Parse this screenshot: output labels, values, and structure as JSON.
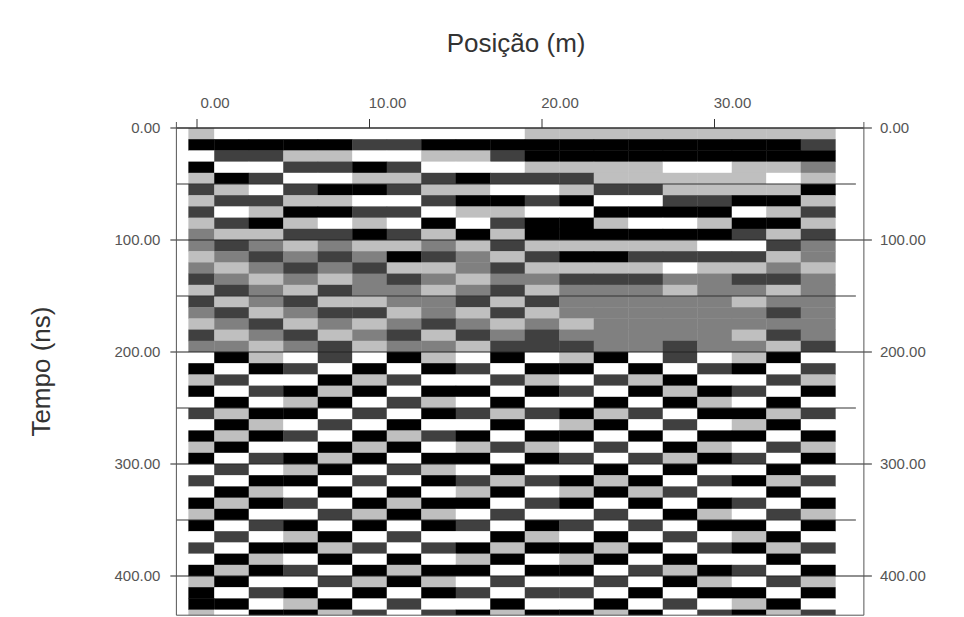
{
  "chart_data": {
    "type": "heatmap",
    "x_label": "Posição (m)",
    "y_label": "Tempo (ns)",
    "xlim": [
      -0.5,
      37.5
    ],
    "ylim": [
      0,
      435
    ],
    "xticks": [
      {
        "value": 0,
        "label": "0.00"
      },
      {
        "value": 10,
        "label": "10.00"
      },
      {
        "value": 20,
        "label": "20.00"
      },
      {
        "value": 30,
        "label": "30.00"
      }
    ],
    "yticks": [
      {
        "value": 0,
        "label": "0.00"
      },
      {
        "value": 100,
        "label": "100.00"
      },
      {
        "value": 200,
        "label": "200.00"
      },
      {
        "value": 300,
        "label": "300.00"
      },
      {
        "value": 400,
        "label": "400.00"
      }
    ],
    "y_minor_ticks": [
      50,
      150,
      250,
      350
    ],
    "grid": true,
    "cells": {
      "value_range": [
        -2,
        2
      ],
      "x": [
        0,
        2,
        4,
        6,
        8,
        10,
        12,
        14,
        16,
        18,
        20,
        22,
        24,
        26,
        28,
        30,
        32,
        34,
        36
      ],
      "y": [
        5,
        15,
        25,
        35,
        45,
        55,
        65,
        75,
        85,
        95,
        105,
        115,
        125,
        135,
        145,
        155,
        165,
        175,
        185,
        195,
        205,
        215,
        225,
        235,
        245,
        255,
        265,
        275,
        285,
        295,
        305,
        315,
        325,
        335,
        345,
        355,
        365,
        375,
        385,
        395,
        405,
        415,
        425,
        435
      ],
      "values": [
        [
          1,
          2,
          2,
          2,
          2,
          2,
          2,
          2,
          2,
          2,
          1,
          1,
          1,
          1,
          1,
          1,
          1,
          1,
          1
        ],
        [
          -2,
          -2,
          -2,
          -2,
          -2,
          -1,
          -1,
          -2,
          -2,
          -2,
          -2,
          -2,
          -2,
          -2,
          -2,
          -2,
          -2,
          -2,
          -1
        ],
        [
          2,
          -1,
          -1,
          1,
          1,
          2,
          2,
          1,
          1,
          -1,
          -2,
          -2,
          -2,
          -2,
          -2,
          -2,
          -2,
          -2,
          -2
        ],
        [
          -2,
          2,
          2,
          -1,
          -1,
          -2,
          -1,
          2,
          2,
          2,
          1,
          1,
          1,
          1,
          2,
          2,
          1,
          1,
          0
        ],
        [
          1,
          -2,
          -1,
          2,
          2,
          1,
          1,
          -1,
          -2,
          -1,
          -1,
          -1,
          1,
          1,
          1,
          1,
          1,
          2,
          1
        ],
        [
          -1,
          1,
          2,
          -1,
          -2,
          -2,
          -1,
          1,
          1,
          2,
          2,
          1,
          -1,
          -1,
          1,
          1,
          1,
          1,
          -2
        ],
        [
          1,
          -1,
          -1,
          1,
          1,
          2,
          2,
          -1,
          -2,
          -2,
          -1,
          -2,
          2,
          2,
          -1,
          -1,
          -2,
          -2,
          1
        ],
        [
          -1,
          2,
          1,
          -2,
          -2,
          -1,
          -1,
          2,
          1,
          1,
          2,
          2,
          -2,
          -2,
          -2,
          -2,
          2,
          1,
          -1
        ],
        [
          1,
          -1,
          -2,
          1,
          2,
          1,
          2,
          -2,
          2,
          -1,
          -2,
          -2,
          1,
          2,
          2,
          1,
          -2,
          -2,
          1
        ],
        [
          0,
          1,
          1,
          -1,
          -1,
          -2,
          -1,
          1,
          -2,
          1,
          -2,
          -2,
          -2,
          -2,
          -2,
          -2,
          -1,
          1,
          -1
        ],
        [
          0,
          -1,
          0,
          1,
          0,
          1,
          1,
          0,
          1,
          -1,
          1,
          1,
          1,
          1,
          1,
          2,
          2,
          -1,
          0
        ],
        [
          1,
          0,
          -1,
          0,
          -1,
          0,
          -2,
          -1,
          0,
          1,
          -1,
          -2,
          -2,
          -1,
          -1,
          -1,
          -1,
          1,
          0
        ],
        [
          0,
          1,
          0,
          -1,
          0,
          -1,
          1,
          1,
          0,
          -1,
          1,
          1,
          1,
          1,
          2,
          1,
          1,
          0,
          1
        ],
        [
          -1,
          0,
          1,
          0,
          1,
          0,
          -1,
          0,
          1,
          0,
          0,
          -1,
          -1,
          -1,
          0,
          0,
          -1,
          -1,
          0
        ],
        [
          1,
          -1,
          0,
          1,
          -1,
          0,
          0,
          1,
          0,
          -1,
          1,
          0,
          0,
          0,
          1,
          0,
          0,
          1,
          0
        ],
        [
          -1,
          1,
          0,
          -1,
          1,
          1,
          0,
          0,
          -1,
          1,
          -1,
          0,
          0,
          0,
          0,
          0,
          1,
          0,
          0
        ],
        [
          0,
          -1,
          1,
          0,
          -1,
          -1,
          1,
          0,
          1,
          -1,
          1,
          0,
          0,
          0,
          0,
          0,
          0,
          -1,
          0
        ],
        [
          1,
          0,
          -1,
          1,
          0,
          1,
          0,
          -1,
          0,
          1,
          0,
          1,
          0,
          0,
          0,
          0,
          0,
          0,
          0
        ],
        [
          -1,
          1,
          0,
          -1,
          1,
          0,
          -1,
          1,
          -1,
          0,
          -1,
          0,
          0,
          0,
          0,
          0,
          1,
          -1,
          0
        ],
        [
          0,
          0,
          1,
          0,
          -1,
          1,
          0,
          0,
          1,
          -1,
          -1,
          -1,
          0,
          0,
          -1,
          0,
          0,
          1,
          -1
        ],
        [
          2,
          -2,
          1,
          2,
          -1,
          2,
          -2,
          1,
          2,
          -2,
          2,
          1,
          -2,
          2,
          -1,
          2,
          1,
          -2,
          2
        ],
        [
          -2,
          2,
          -2,
          -1,
          2,
          -2,
          2,
          -2,
          -1,
          2,
          -2,
          -2,
          2,
          -2,
          2,
          -1,
          -2,
          2,
          -1
        ],
        [
          1,
          -1,
          2,
          2,
          -2,
          1,
          -1,
          2,
          2,
          -1,
          1,
          2,
          -1,
          1,
          -2,
          2,
          2,
          -1,
          1
        ],
        [
          -2,
          2,
          -1,
          -2,
          1,
          -2,
          2,
          -2,
          -2,
          2,
          -2,
          -1,
          2,
          -2,
          1,
          -2,
          -1,
          2,
          -2
        ],
        [
          2,
          -2,
          2,
          1,
          -2,
          2,
          -1,
          1,
          2,
          -2,
          2,
          2,
          -2,
          2,
          -2,
          1,
          2,
          -2,
          2
        ],
        [
          -1,
          1,
          -2,
          -2,
          2,
          -1,
          2,
          -2,
          -1,
          1,
          -1,
          -2,
          1,
          -1,
          2,
          -2,
          -2,
          1,
          -1
        ],
        [
          2,
          -2,
          1,
          2,
          -1,
          2,
          -2,
          2,
          2,
          -2,
          2,
          1,
          -2,
          2,
          -1,
          2,
          1,
          -2,
          2
        ],
        [
          -2,
          1,
          -2,
          -1,
          2,
          -2,
          1,
          -1,
          -2,
          2,
          -2,
          -2,
          2,
          -2,
          2,
          -2,
          -2,
          2,
          -2
        ],
        [
          1,
          -2,
          2,
          2,
          -2,
          1,
          -2,
          2,
          1,
          -1,
          1,
          2,
          -1,
          2,
          -2,
          1,
          2,
          -1,
          1
        ],
        [
          -2,
          2,
          -1,
          -2,
          1,
          -2,
          2,
          -2,
          -2,
          2,
          -2,
          -1,
          2,
          -1,
          1,
          -2,
          -1,
          2,
          -2
        ],
        [
          2,
          -1,
          2,
          1,
          -2,
          2,
          -1,
          1,
          2,
          -2,
          2,
          2,
          -2,
          2,
          -2,
          2,
          2,
          -2,
          2
        ],
        [
          -1,
          2,
          -2,
          -2,
          2,
          -1,
          2,
          -2,
          -1,
          1,
          -1,
          -2,
          1,
          -2,
          2,
          -1,
          -2,
          1,
          -1
        ],
        [
          2,
          -2,
          1,
          2,
          -2,
          2,
          -2,
          2,
          1,
          -2,
          2,
          1,
          -2,
          1,
          -1,
          2,
          2,
          -2,
          2
        ],
        [
          -2,
          1,
          -2,
          -1,
          2,
          -2,
          1,
          -2,
          -2,
          2,
          -1,
          -2,
          2,
          -2,
          2,
          -2,
          -1,
          2,
          -2
        ],
        [
          1,
          -2,
          2,
          2,
          -1,
          1,
          -2,
          1,
          2,
          -1,
          2,
          2,
          -1,
          2,
          -2,
          1,
          2,
          -1,
          1
        ],
        [
          -2,
          2,
          -1,
          -2,
          2,
          -2,
          2,
          -2,
          -1,
          2,
          -2,
          -1,
          2,
          -1,
          2,
          -2,
          -2,
          2,
          -2
        ],
        [
          2,
          -1,
          2,
          1,
          -2,
          2,
          -1,
          2,
          2,
          -2,
          1,
          2,
          -2,
          2,
          -1,
          2,
          1,
          -2,
          2
        ],
        [
          -1,
          2,
          -2,
          -2,
          1,
          -1,
          2,
          -1,
          -2,
          1,
          -2,
          -2,
          1,
          -2,
          2,
          -1,
          -2,
          1,
          -1
        ],
        [
          2,
          -2,
          1,
          2,
          -2,
          2,
          -2,
          2,
          1,
          -2,
          2,
          1,
          -2,
          2,
          -2,
          2,
          2,
          -2,
          2
        ],
        [
          -2,
          1,
          -2,
          -1,
          2,
          -2,
          1,
          -2,
          -2,
          2,
          -2,
          -2,
          2,
          -1,
          1,
          -2,
          -1,
          2,
          -2
        ],
        [
          1,
          -2,
          2,
          2,
          -1,
          1,
          -2,
          1,
          2,
          -1,
          2,
          2,
          -1,
          2,
          -2,
          1,
          2,
          -1,
          1
        ],
        [
          -2,
          2,
          -1,
          -2,
          2,
          -2,
          2,
          -2,
          -1,
          2,
          -1,
          -1,
          2,
          -2,
          2,
          -2,
          -2,
          2,
          -2
        ],
        [
          -2,
          -2,
          2,
          1,
          -2,
          2,
          -1,
          2,
          2,
          -2,
          2,
          2,
          -2,
          2,
          -1,
          2,
          1,
          -2,
          2
        ],
        [
          1,
          2,
          -2,
          -2,
          1,
          -1,
          2,
          -1,
          -2,
          1,
          -2,
          -2,
          1,
          -2,
          2,
          -1,
          -2,
          1,
          -1
        ]
      ]
    }
  }
}
